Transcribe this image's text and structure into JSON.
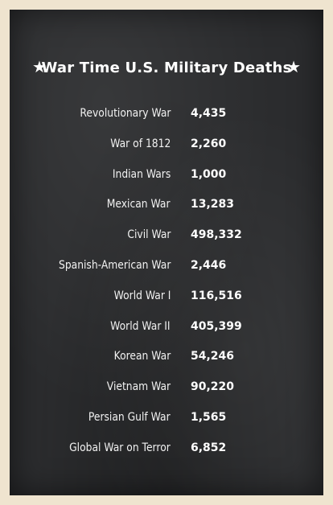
{
  "title": "War Time U.S. Military Deaths",
  "star_icon": "★",
  "rows": [
    {
      "war": "Revolutionary War",
      "deaths": "4,435"
    },
    {
      "war": "War of 1812",
      "deaths": "2,260"
    },
    {
      "war": "Indian Wars",
      "deaths": "1,000"
    },
    {
      "war": "Mexican War",
      "deaths": "13,283"
    },
    {
      "war": "Civil War",
      "deaths": "498,332"
    },
    {
      "war": "Spanish-American War",
      "deaths": "2,446"
    },
    {
      "war": "World War I",
      "deaths": "116,516"
    },
    {
      "war": "World War II",
      "deaths": "405,399"
    },
    {
      "war": "Korean War",
      "deaths": "54,246"
    },
    {
      "war": "Vietnam War",
      "deaths": "90,220"
    },
    {
      "war": "Persian Gulf War",
      "deaths": "1,565"
    },
    {
      "war": "Global War on Terror",
      "deaths": "6,852"
    }
  ],
  "colors": {
    "background": "#efe4cf",
    "board": "#2b2c2e",
    "text": "#ffffff"
  }
}
